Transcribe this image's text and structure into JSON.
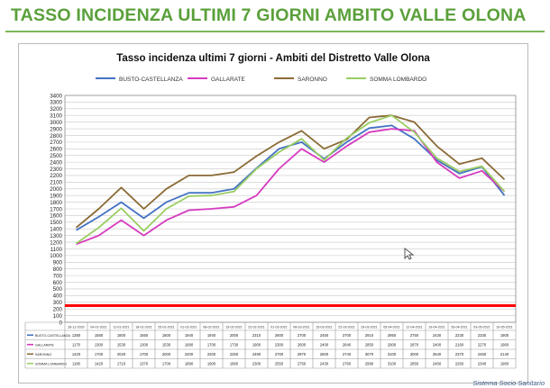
{
  "slide_title": "TASSO INCIDENZA ULTIMI 7 GIORNI AMBITO VALLE OLONA",
  "footer": "Sistema Socio Sanitario",
  "colors": {
    "title": "#5aa03a",
    "threshold": "#ff0000"
  },
  "chart_data": {
    "type": "line",
    "title": "Tasso incidenza ultimi 7 giorni - Ambiti del Distretto Valle Olona",
    "ylim": [
      0,
      3400
    ],
    "ytick_step": 100,
    "grid": true,
    "legend_position": "top",
    "threshold": 250,
    "categories": [
      "28-12-2020",
      "04-01-2021",
      "11-01-2021",
      "18-01-2021",
      "25-01-2021",
      "01-02-2021",
      "08-02-2021",
      "15-02-2021",
      "22-02-2021",
      "01-03-2021",
      "08-03-2021",
      "15-03-2021",
      "22-03-2021",
      "29-03-2021",
      "05-04-2021",
      "12-04-2021",
      "19-04-2021",
      "26-04-2021",
      "03-05-2021",
      "10-05-2021"
    ],
    "series": [
      {
        "name": "BUSTO-CASTELLANZA",
        "color": "#4472c4",
        "values": [
          1380,
          1580,
          1800,
          1560,
          1800,
          1940,
          1940,
          2000,
          2310,
          2600,
          2700,
          2450,
          2700,
          2910,
          2950,
          2750,
          2430,
          2230,
          2330,
          1900
        ]
      },
      {
        "name": "GALLARATE",
        "color": "#d63bbf",
        "values": [
          1170,
          1300,
          1530,
          1300,
          1530,
          1680,
          1700,
          1730,
          1900,
          2300,
          2600,
          2400,
          2640,
          2850,
          2900,
          2870,
          2400,
          2160,
          2270,
          1960
        ]
      },
      {
        "name": "SARONNO",
        "color": "#8b6a36",
        "values": [
          1420,
          1700,
          2020,
          1700,
          2000,
          2200,
          2200,
          2250,
          2490,
          2700,
          2870,
          2600,
          2740,
          3070,
          3100,
          3000,
          2640,
          2370,
          2460,
          2140
        ]
      },
      {
        "name": "SOMMA LOMBARDO",
        "color": "#9acd62",
        "values": [
          1180,
          1420,
          1710,
          1370,
          1700,
          1890,
          1900,
          1960,
          2300,
          2550,
          2750,
          2430,
          2760,
          2990,
          3100,
          2850,
          2460,
          2260,
          2340,
          1960
        ]
      }
    ]
  }
}
